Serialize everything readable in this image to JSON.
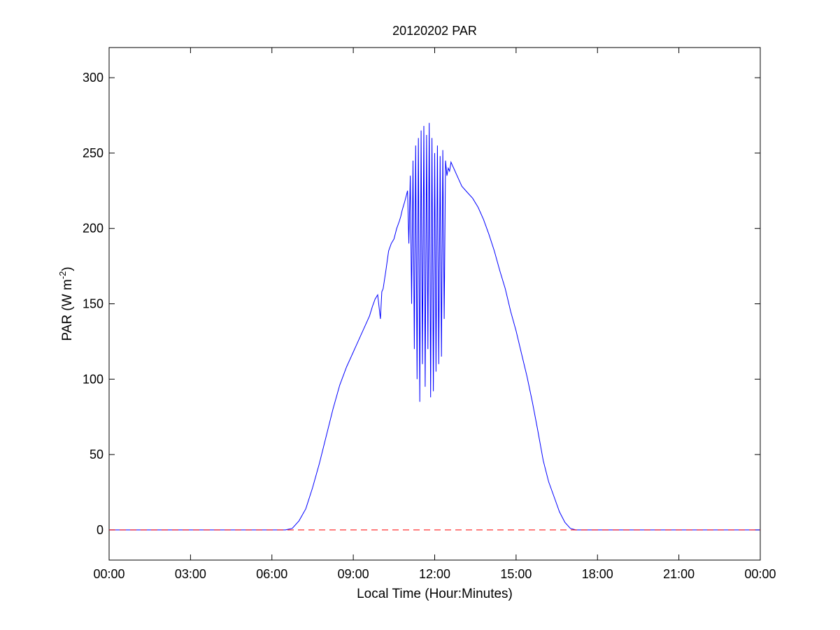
{
  "chart_data": {
    "type": "line",
    "title": "20120202 PAR",
    "xlabel": "Local Time (Hour:Minutes)",
    "ylabel": {
      "prefix": "PAR (W m",
      "superscript": "-2",
      "suffix": ")"
    },
    "xlim": [
      0,
      24
    ],
    "ylim": [
      -20,
      320
    ],
    "x_ticks": [
      0,
      3,
      6,
      9,
      12,
      15,
      18,
      21,
      24
    ],
    "x_tick_labels": [
      "00:00",
      "03:00",
      "06:00",
      "09:00",
      "12:00",
      "15:00",
      "18:00",
      "21:00",
      "00:00"
    ],
    "y_ticks": [
      0,
      50,
      100,
      150,
      200,
      250,
      300
    ],
    "y_tick_labels": [
      "0",
      "50",
      "100",
      "150",
      "200",
      "250",
      "300"
    ],
    "grid": false,
    "legend": "none",
    "series": [
      {
        "color": "#0000ff",
        "style": "solid",
        "x": [
          0,
          6.5,
          6.75,
          7.0,
          7.25,
          7.5,
          7.75,
          8.0,
          8.25,
          8.5,
          8.75,
          9.0,
          9.25,
          9.5,
          9.6,
          9.7,
          9.8,
          9.9,
          10.0,
          10.05,
          10.1,
          10.2,
          10.3,
          10.4,
          10.5,
          10.6,
          10.7,
          10.75,
          10.8,
          10.9,
          11.0,
          11.05,
          11.1,
          11.15,
          11.2,
          11.25,
          11.3,
          11.35,
          11.4,
          11.45,
          11.5,
          11.55,
          11.6,
          11.65,
          11.7,
          11.75,
          11.8,
          11.85,
          11.9,
          11.95,
          12.0,
          12.05,
          12.1,
          12.15,
          12.2,
          12.25,
          12.3,
          12.35,
          12.4,
          12.45,
          12.5,
          12.55,
          12.6,
          12.65,
          12.7,
          12.8,
          12.9,
          13.0,
          13.2,
          13.4,
          13.6,
          13.8,
          14.0,
          14.2,
          14.4,
          14.6,
          14.8,
          15.0,
          15.2,
          15.4,
          15.6,
          15.8,
          16.0,
          16.2,
          16.4,
          16.6,
          16.8,
          17.0,
          17.2,
          17.4,
          17.6,
          17.8,
          18.0,
          24
        ],
        "y": [
          0,
          0,
          1,
          6,
          14,
          28,
          44,
          62,
          80,
          96,
          108,
          118,
          128,
          138,
          142,
          148,
          153,
          156,
          140,
          158,
          160,
          172,
          185,
          190,
          193,
          200,
          205,
          208,
          212,
          218,
          225,
          190,
          235,
          150,
          245,
          120,
          255,
          100,
          260,
          85,
          265,
          110,
          268,
          95,
          262,
          120,
          270,
          88,
          260,
          92,
          250,
          105,
          255,
          110,
          248,
          115,
          252,
          140,
          245,
          235,
          240,
          238,
          244,
          242,
          240,
          236,
          232,
          228,
          224,
          220,
          214,
          206,
          196,
          185,
          172,
          160,
          145,
          132,
          117,
          102,
          85,
          66,
          46,
          32,
          22,
          12,
          5,
          1,
          0,
          0,
          0,
          0,
          0,
          0
        ]
      },
      {
        "color": "#ff0000",
        "style": "dashed",
        "x": [
          0,
          24
        ],
        "y": [
          0,
          0
        ]
      }
    ]
  }
}
